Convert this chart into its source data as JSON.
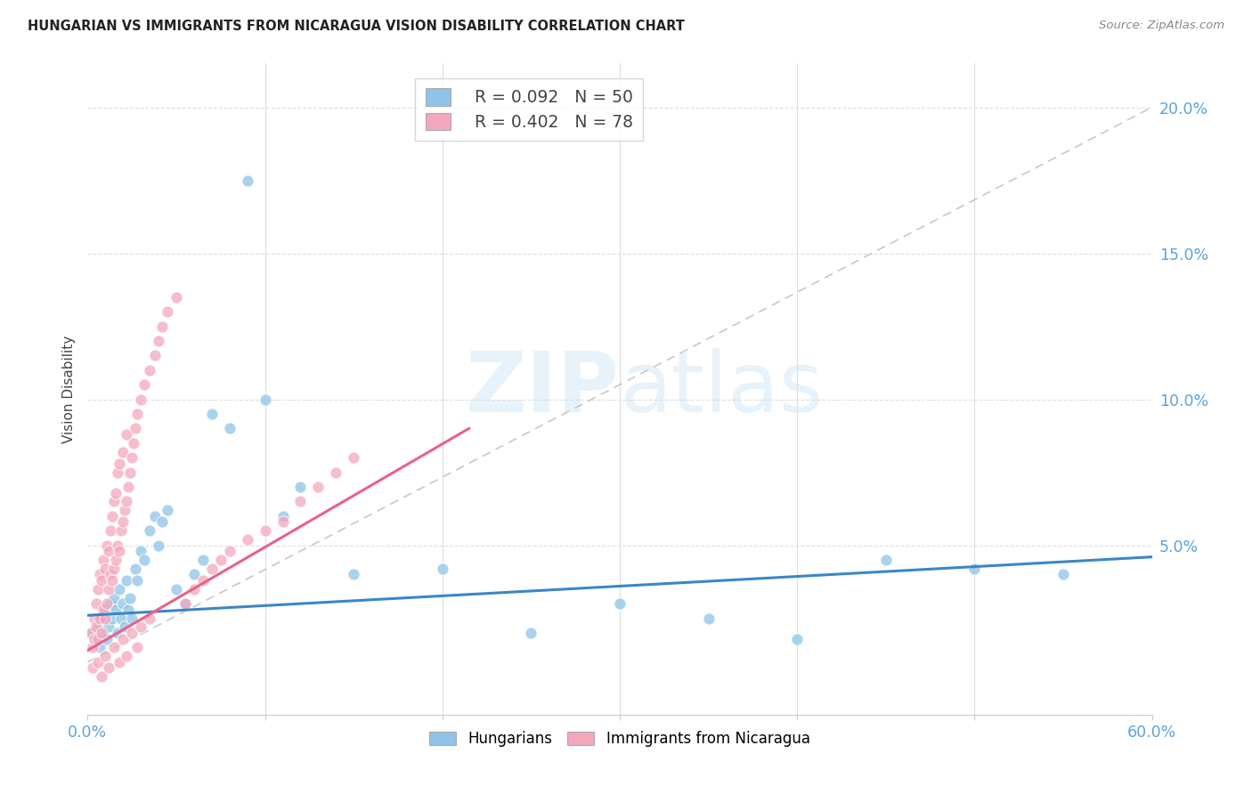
{
  "title": "HUNGARIAN VS IMMIGRANTS FROM NICARAGUA VISION DISABILITY CORRELATION CHART",
  "source": "Source: ZipAtlas.com",
  "ylabel": "Vision Disability",
  "ytick_labels": [
    "",
    "5.0%",
    "10.0%",
    "15.0%",
    "20.0%"
  ],
  "ytick_values": [
    0.0,
    0.05,
    0.1,
    0.15,
    0.2
  ],
  "xlim": [
    0.0,
    0.6
  ],
  "ylim": [
    -0.008,
    0.215
  ],
  "watermark": "ZIPatlas",
  "legend_r1": "R = 0.092",
  "legend_n1": "N = 50",
  "legend_r2": "R = 0.402",
  "legend_n2": "N = 78",
  "blue_color": "#8ec4e8",
  "pink_color": "#f4a7bb",
  "blue_line_color": "#3a86c8",
  "pink_line_color": "#e8628a",
  "dashed_line_color": "#c8c8c8",
  "axis_color": "#5ba3d9",
  "grid_color": "#dddddd",
  "title_color": "#222222",
  "source_color": "#888888",
  "hung_x": [
    0.003,
    0.005,
    0.006,
    0.007,
    0.008,
    0.009,
    0.01,
    0.011,
    0.012,
    0.013,
    0.014,
    0.015,
    0.016,
    0.017,
    0.018,
    0.019,
    0.02,
    0.021,
    0.022,
    0.023,
    0.024,
    0.025,
    0.027,
    0.028,
    0.03,
    0.032,
    0.035,
    0.038,
    0.04,
    0.042,
    0.045,
    0.05,
    0.055,
    0.06,
    0.065,
    0.07,
    0.08,
    0.09,
    0.1,
    0.11,
    0.12,
    0.15,
    0.2,
    0.25,
    0.3,
    0.35,
    0.4,
    0.45,
    0.5,
    0.55
  ],
  "hung_y": [
    0.02,
    0.018,
    0.022,
    0.015,
    0.025,
    0.02,
    0.028,
    0.018,
    0.022,
    0.03,
    0.025,
    0.032,
    0.028,
    0.02,
    0.035,
    0.025,
    0.03,
    0.022,
    0.038,
    0.028,
    0.032,
    0.025,
    0.042,
    0.038,
    0.048,
    0.045,
    0.055,
    0.06,
    0.05,
    0.058,
    0.062,
    0.035,
    0.03,
    0.04,
    0.045,
    0.095,
    0.09,
    0.175,
    0.1,
    0.06,
    0.07,
    0.04,
    0.042,
    0.02,
    0.03,
    0.025,
    0.018,
    0.045,
    0.042,
    0.04
  ],
  "nic_x": [
    0.002,
    0.003,
    0.004,
    0.004,
    0.005,
    0.005,
    0.006,
    0.006,
    0.007,
    0.007,
    0.008,
    0.008,
    0.009,
    0.009,
    0.01,
    0.01,
    0.011,
    0.011,
    0.012,
    0.012,
    0.013,
    0.013,
    0.014,
    0.014,
    0.015,
    0.015,
    0.016,
    0.016,
    0.017,
    0.017,
    0.018,
    0.018,
    0.019,
    0.02,
    0.02,
    0.021,
    0.022,
    0.022,
    0.023,
    0.024,
    0.025,
    0.026,
    0.027,
    0.028,
    0.03,
    0.032,
    0.035,
    0.038,
    0.04,
    0.042,
    0.045,
    0.05,
    0.055,
    0.06,
    0.065,
    0.07,
    0.075,
    0.08,
    0.09,
    0.1,
    0.11,
    0.12,
    0.13,
    0.14,
    0.15,
    0.003,
    0.006,
    0.01,
    0.015,
    0.02,
    0.025,
    0.03,
    0.035,
    0.008,
    0.012,
    0.018,
    0.022,
    0.028
  ],
  "nic_y": [
    0.02,
    0.015,
    0.018,
    0.025,
    0.022,
    0.03,
    0.018,
    0.035,
    0.025,
    0.04,
    0.02,
    0.038,
    0.028,
    0.045,
    0.025,
    0.042,
    0.03,
    0.05,
    0.035,
    0.048,
    0.04,
    0.055,
    0.038,
    0.06,
    0.042,
    0.065,
    0.045,
    0.068,
    0.05,
    0.075,
    0.048,
    0.078,
    0.055,
    0.058,
    0.082,
    0.062,
    0.065,
    0.088,
    0.07,
    0.075,
    0.08,
    0.085,
    0.09,
    0.095,
    0.1,
    0.105,
    0.11,
    0.115,
    0.12,
    0.125,
    0.13,
    0.135,
    0.03,
    0.035,
    0.038,
    0.042,
    0.045,
    0.048,
    0.052,
    0.055,
    0.058,
    0.065,
    0.07,
    0.075,
    0.08,
    0.008,
    0.01,
    0.012,
    0.015,
    0.018,
    0.02,
    0.022,
    0.025,
    0.005,
    0.008,
    0.01,
    0.012,
    0.015
  ],
  "blue_trend_x": [
    0.0,
    0.6
  ],
  "blue_trend_y": [
    0.026,
    0.046
  ],
  "pink_trend_x": [
    0.0,
    0.215
  ],
  "pink_trend_y": [
    0.014,
    0.09
  ],
  "dash_trend_x": [
    0.0,
    0.6
  ],
  "dash_trend_y": [
    0.01,
    0.2
  ]
}
